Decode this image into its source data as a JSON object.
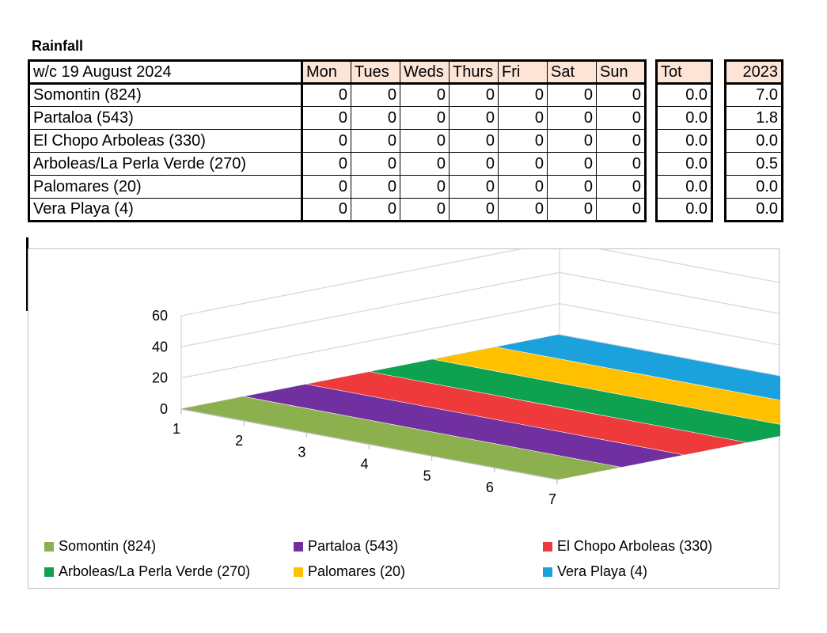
{
  "heading": "Rainfall",
  "table": {
    "week_label": "w/c  19 August 2024",
    "days": [
      "Mon",
      "Tues",
      "Weds",
      "Thurs",
      "Fri",
      "Sat",
      "Sun"
    ],
    "total_header": "Tot",
    "year_header": "2023",
    "rows": [
      {
        "name": "Somontin (824)",
        "values": [
          "0",
          "0",
          "0",
          "0",
          "0",
          "0",
          "0"
        ],
        "total": "0.0",
        "year": "7.0"
      },
      {
        "name": "Partaloa (543)",
        "values": [
          "0",
          "0",
          "0",
          "0",
          "0",
          "0",
          "0"
        ],
        "total": "0.0",
        "year": "1.8"
      },
      {
        "name": "El Chopo Arboleas (330)",
        "values": [
          "0",
          "0",
          "0",
          "0",
          "0",
          "0",
          "0"
        ],
        "total": "0.0",
        "year": "0.0"
      },
      {
        "name": "Arboleas/La Perla Verde (270)",
        "values": [
          "0",
          "0",
          "0",
          "0",
          "0",
          "0",
          "0"
        ],
        "total": "0.0",
        "year": "0.5"
      },
      {
        "name": "Palomares (20)",
        "values": [
          "0",
          "0",
          "0",
          "0",
          "0",
          "0",
          "0"
        ],
        "total": "0.0",
        "year": "0.0"
      },
      {
        "name": "Vera Playa (4)",
        "values": [
          "0",
          "0",
          "0",
          "0",
          "0",
          "0",
          "0"
        ],
        "total": "0.0",
        "year": "0.0"
      }
    ]
  },
  "chart_data": {
    "type": "bar",
    "categories": [
      "1",
      "2",
      "3",
      "4",
      "5",
      "6",
      "7"
    ],
    "ylim": [
      0,
      60
    ],
    "yticks": [
      "0",
      "20",
      "40",
      "60"
    ],
    "grid": true,
    "legend_position": "bottom",
    "series": [
      {
        "name": "Somontin (824)",
        "color": "#8db04f",
        "values": [
          0,
          0,
          0,
          0,
          0,
          0,
          0
        ]
      },
      {
        "name": "Partaloa (543)",
        "color": "#7030a0",
        "values": [
          0,
          0,
          0,
          0,
          0,
          0,
          0
        ]
      },
      {
        "name": "El Chopo Arboleas (330)",
        "color": "#ee3a3a",
        "values": [
          0,
          0,
          0,
          0,
          0,
          0,
          0
        ]
      },
      {
        "name": "Arboleas/La Perla Verde (270)",
        "color": "#0ea150",
        "values": [
          0,
          0,
          0,
          0,
          0,
          0,
          0
        ]
      },
      {
        "name": "Palomares (20)",
        "color": "#ffc000",
        "values": [
          0,
          0,
          0,
          0,
          0,
          0,
          0
        ]
      },
      {
        "name": "Vera Playa (4)",
        "color": "#1ba1dc",
        "values": [
          0,
          0,
          0,
          0,
          0,
          0,
          0
        ]
      }
    ]
  }
}
